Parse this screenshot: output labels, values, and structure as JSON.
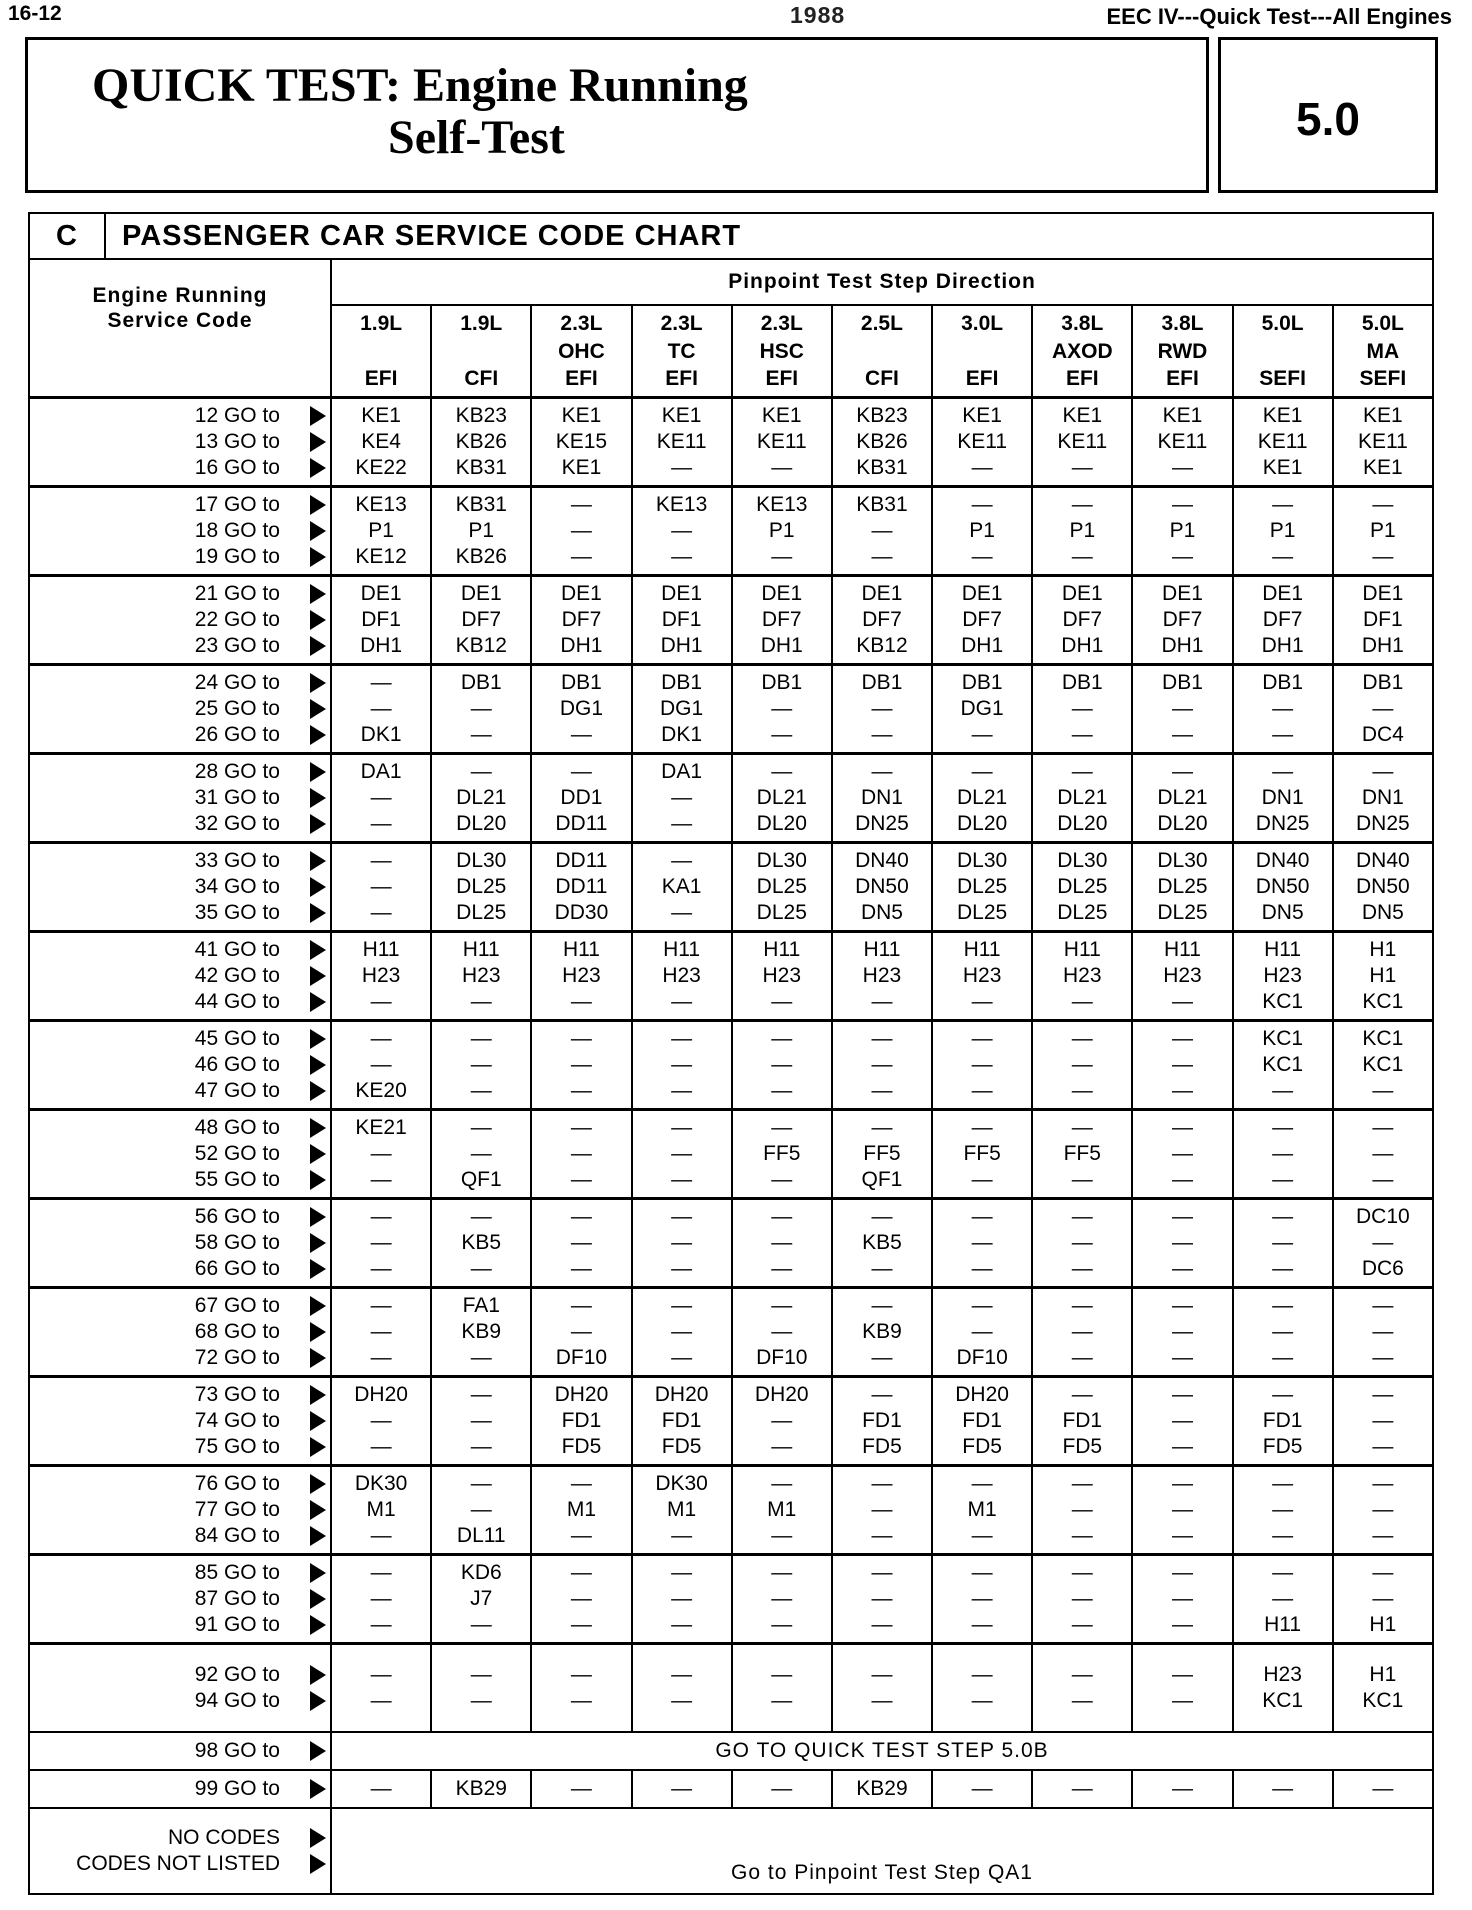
{
  "page_header": {
    "page_number": "16-12",
    "year": "1988",
    "running_head": "EEC IV---Quick Test---All Engines"
  },
  "title": {
    "line1": "QUICK TEST: Engine Running",
    "line2": "Self-Test",
    "section_number": "5.0"
  },
  "chart": {
    "section_letter": "C",
    "section_title": "PASSENGER CAR SERVICE CODE CHART",
    "code_header": [
      "Engine Running",
      "Service Code"
    ],
    "direction_header": "Pinpoint Test Step Direction",
    "columns": [
      [
        "1.9L",
        "",
        "EFI"
      ],
      [
        "1.9L",
        "",
        "CFI"
      ],
      [
        "2.3L",
        "OHC",
        "EFI"
      ],
      [
        "2.3L",
        "TC",
        "EFI"
      ],
      [
        "2.3L",
        "HSC",
        "EFI"
      ],
      [
        "2.5L",
        "",
        "CFI"
      ],
      [
        "3.0L",
        "",
        "EFI"
      ],
      [
        "3.8L",
        "AXOD",
        "EFI"
      ],
      [
        "3.8L",
        "RWD",
        "EFI"
      ],
      [
        "5.0L",
        "",
        "SEFI"
      ],
      [
        "5.0L",
        "MA",
        "SEFI"
      ]
    ],
    "go_to": "GO to",
    "groups": [
      {
        "codes": [
          "12",
          "13",
          "16"
        ],
        "cells": [
          [
            "KE1",
            "KE4",
            "KE22"
          ],
          [
            "KB23",
            "KB26",
            "KB31"
          ],
          [
            "KE1",
            "KE15",
            "KE1"
          ],
          [
            "KE1",
            "KE11",
            "—"
          ],
          [
            "KE1",
            "KE11",
            "—"
          ],
          [
            "KB23",
            "KB26",
            "KB31"
          ],
          [
            "KE1",
            "KE11",
            "—"
          ],
          [
            "KE1",
            "KE11",
            "—"
          ],
          [
            "KE1",
            "KE11",
            "—"
          ],
          [
            "KE1",
            "KE11",
            "KE1"
          ],
          [
            "KE1",
            "KE11",
            "KE1"
          ]
        ]
      },
      {
        "codes": [
          "17",
          "18",
          "19"
        ],
        "cells": [
          [
            "KE13",
            "P1",
            "KE12"
          ],
          [
            "KB31",
            "P1",
            "KB26"
          ],
          [
            "—",
            "—",
            "—"
          ],
          [
            "KE13",
            "—",
            "—"
          ],
          [
            "KE13",
            "P1",
            "—"
          ],
          [
            "KB31",
            "—",
            "—"
          ],
          [
            "—",
            "P1",
            "—"
          ],
          [
            "—",
            "P1",
            "—"
          ],
          [
            "—",
            "P1",
            "—"
          ],
          [
            "—",
            "P1",
            "—"
          ],
          [
            "—",
            "P1",
            "—"
          ]
        ]
      },
      {
        "codes": [
          "21",
          "22",
          "23"
        ],
        "cells": [
          [
            "DE1",
            "DF1",
            "DH1"
          ],
          [
            "DE1",
            "DF7",
            "KB12"
          ],
          [
            "DE1",
            "DF7",
            "DH1"
          ],
          [
            "DE1",
            "DF1",
            "DH1"
          ],
          [
            "DE1",
            "DF7",
            "DH1"
          ],
          [
            "DE1",
            "DF7",
            "KB12"
          ],
          [
            "DE1",
            "DF7",
            "DH1"
          ],
          [
            "DE1",
            "DF7",
            "DH1"
          ],
          [
            "DE1",
            "DF7",
            "DH1"
          ],
          [
            "DE1",
            "DF7",
            "DH1"
          ],
          [
            "DE1",
            "DF1",
            "DH1"
          ]
        ]
      },
      {
        "codes": [
          "24",
          "25",
          "26"
        ],
        "cells": [
          [
            "—",
            "—",
            "DK1"
          ],
          [
            "DB1",
            "—",
            "—"
          ],
          [
            "DB1",
            "DG1",
            "—"
          ],
          [
            "DB1",
            "DG1",
            "DK1"
          ],
          [
            "DB1",
            "—",
            "—"
          ],
          [
            "DB1",
            "—",
            "—"
          ],
          [
            "DB1",
            "DG1",
            "—"
          ],
          [
            "DB1",
            "—",
            "—"
          ],
          [
            "DB1",
            "—",
            "—"
          ],
          [
            "DB1",
            "—",
            "—"
          ],
          [
            "DB1",
            "—",
            "DC4"
          ]
        ]
      },
      {
        "codes": [
          "28",
          "31",
          "32"
        ],
        "cells": [
          [
            "DA1",
            "—",
            "—"
          ],
          [
            "—",
            "DL21",
            "DL20"
          ],
          [
            "—",
            "DD1",
            "DD11"
          ],
          [
            "DA1",
            "—",
            "—"
          ],
          [
            "—",
            "DL21",
            "DL20"
          ],
          [
            "—",
            "DN1",
            "DN25"
          ],
          [
            "—",
            "DL21",
            "DL20"
          ],
          [
            "—",
            "DL21",
            "DL20"
          ],
          [
            "—",
            "DL21",
            "DL20"
          ],
          [
            "—",
            "DN1",
            "DN25"
          ],
          [
            "—",
            "DN1",
            "DN25"
          ]
        ]
      },
      {
        "codes": [
          "33",
          "34",
          "35"
        ],
        "cells": [
          [
            "—",
            "—",
            "—"
          ],
          [
            "DL30",
            "DL25",
            "DL25"
          ],
          [
            "DD11",
            "DD11",
            "DD30"
          ],
          [
            "—",
            "KA1",
            "—"
          ],
          [
            "DL30",
            "DL25",
            "DL25"
          ],
          [
            "DN40",
            "DN50",
            "DN5"
          ],
          [
            "DL30",
            "DL25",
            "DL25"
          ],
          [
            "DL30",
            "DL25",
            "DL25"
          ],
          [
            "DL30",
            "DL25",
            "DL25"
          ],
          [
            "DN40",
            "DN50",
            "DN5"
          ],
          [
            "DN40",
            "DN50",
            "DN5"
          ]
        ]
      },
      {
        "codes": [
          "41",
          "42",
          "44"
        ],
        "cells": [
          [
            "H11",
            "H23",
            "—"
          ],
          [
            "H11",
            "H23",
            "—"
          ],
          [
            "H11",
            "H23",
            "—"
          ],
          [
            "H11",
            "H23",
            "—"
          ],
          [
            "H11",
            "H23",
            "—"
          ],
          [
            "H11",
            "H23",
            "—"
          ],
          [
            "H11",
            "H23",
            "—"
          ],
          [
            "H11",
            "H23",
            "—"
          ],
          [
            "H11",
            "H23",
            "—"
          ],
          [
            "H11",
            "H23",
            "KC1"
          ],
          [
            "H1",
            "H1",
            "KC1"
          ]
        ]
      },
      {
        "codes": [
          "45",
          "46",
          "47"
        ],
        "cells": [
          [
            "—",
            "—",
            "KE20"
          ],
          [
            "—",
            "—",
            "—"
          ],
          [
            "—",
            "—",
            "—"
          ],
          [
            "—",
            "—",
            "—"
          ],
          [
            "—",
            "—",
            "—"
          ],
          [
            "—",
            "—",
            "—"
          ],
          [
            "—",
            "—",
            "—"
          ],
          [
            "—",
            "—",
            "—"
          ],
          [
            "—",
            "—",
            "—"
          ],
          [
            "KC1",
            "KC1",
            "—"
          ],
          [
            "KC1",
            "KC1",
            "—"
          ]
        ]
      },
      {
        "codes": [
          "48",
          "52",
          "55"
        ],
        "cells": [
          [
            "KE21",
            "—",
            "—"
          ],
          [
            "—",
            "—",
            "QF1"
          ],
          [
            "—",
            "—",
            "—"
          ],
          [
            "—",
            "—",
            "—"
          ],
          [
            "—",
            "FF5",
            "—"
          ],
          [
            "—",
            "FF5",
            "QF1"
          ],
          [
            "—",
            "FF5",
            "—"
          ],
          [
            "—",
            "FF5",
            "—"
          ],
          [
            "—",
            "—",
            "—"
          ],
          [
            "—",
            "—",
            "—"
          ],
          [
            "—",
            "—",
            "—"
          ]
        ]
      },
      {
        "codes": [
          "56",
          "58",
          "66"
        ],
        "cells": [
          [
            "—",
            "—",
            "—"
          ],
          [
            "—",
            "KB5",
            "—"
          ],
          [
            "—",
            "—",
            "—"
          ],
          [
            "—",
            "—",
            "—"
          ],
          [
            "—",
            "—",
            "—"
          ],
          [
            "—",
            "KB5",
            "—"
          ],
          [
            "—",
            "—",
            "—"
          ],
          [
            "—",
            "—",
            "—"
          ],
          [
            "—",
            "—",
            "—"
          ],
          [
            "—",
            "—",
            "—"
          ],
          [
            "DC10",
            "—",
            "DC6"
          ]
        ]
      },
      {
        "codes": [
          "67",
          "68",
          "72"
        ],
        "cells": [
          [
            "—",
            "—",
            "—"
          ],
          [
            "FA1",
            "KB9",
            "—"
          ],
          [
            "—",
            "—",
            "DF10"
          ],
          [
            "—",
            "—",
            "—"
          ],
          [
            "—",
            "—",
            "DF10"
          ],
          [
            "—",
            "KB9",
            "—"
          ],
          [
            "—",
            "—",
            "DF10"
          ],
          [
            "—",
            "—",
            "—"
          ],
          [
            "—",
            "—",
            "—"
          ],
          [
            "—",
            "—",
            "—"
          ],
          [
            "—",
            "—",
            "—"
          ]
        ]
      },
      {
        "codes": [
          "73",
          "74",
          "75"
        ],
        "cells": [
          [
            "DH20",
            "—",
            "—"
          ],
          [
            "—",
            "—",
            "—"
          ],
          [
            "DH20",
            "FD1",
            "FD5"
          ],
          [
            "DH20",
            "FD1",
            "FD5"
          ],
          [
            "DH20",
            "—",
            "—"
          ],
          [
            "—",
            "FD1",
            "FD5"
          ],
          [
            "DH20",
            "FD1",
            "FD5"
          ],
          [
            "—",
            "FD1",
            "FD5"
          ],
          [
            "—",
            "—",
            "—"
          ],
          [
            "—",
            "FD1",
            "FD5"
          ],
          [
            "—",
            "—",
            "—"
          ]
        ]
      },
      {
        "codes": [
          "76",
          "77",
          "84"
        ],
        "cells": [
          [
            "DK30",
            "M1",
            "—"
          ],
          [
            "—",
            "—",
            "DL11"
          ],
          [
            "—",
            "M1",
            "—"
          ],
          [
            "DK30",
            "M1",
            "—"
          ],
          [
            "—",
            "M1",
            "—"
          ],
          [
            "—",
            "—",
            "—"
          ],
          [
            "—",
            "M1",
            "—"
          ],
          [
            "—",
            "—",
            "—"
          ],
          [
            "—",
            "—",
            "—"
          ],
          [
            "—",
            "—",
            "—"
          ],
          [
            "—",
            "—",
            "—"
          ]
        ]
      },
      {
        "codes": [
          "85",
          "87",
          "91"
        ],
        "cells": [
          [
            "—",
            "—",
            "—"
          ],
          [
            "KD6",
            "J7",
            "—"
          ],
          [
            "—",
            "—",
            "—"
          ],
          [
            "—",
            "—",
            "—"
          ],
          [
            "—",
            "—",
            "—"
          ],
          [
            "—",
            "—",
            "—"
          ],
          [
            "—",
            "—",
            "—"
          ],
          [
            "—",
            "—",
            "—"
          ],
          [
            "—",
            "—",
            "—"
          ],
          [
            "—",
            "—",
            "H11"
          ],
          [
            "—",
            "—",
            "H1"
          ]
        ]
      },
      {
        "codes": [
          "92",
          "94"
        ],
        "cells": [
          [
            "—",
            "—"
          ],
          [
            "—",
            "—"
          ],
          [
            "—",
            "—"
          ],
          [
            "—",
            "—"
          ],
          [
            "—",
            "—"
          ],
          [
            "—",
            "—"
          ],
          [
            "—",
            "—"
          ],
          [
            "—",
            "—"
          ],
          [
            "—",
            "—"
          ],
          [
            "H23",
            "KC1"
          ],
          [
            "H1",
            "KC1"
          ]
        ]
      }
    ],
    "row_98": {
      "code": "98",
      "text": "GO TO QUICK TEST STEP 5.0B"
    },
    "row_99": {
      "code": "99",
      "cells": [
        "—",
        "KB29",
        "—",
        "—",
        "—",
        "KB29",
        "—",
        "—",
        "—",
        "—",
        "—"
      ]
    },
    "row_last": {
      "codes": [
        "NO CODES",
        "CODES NOT LISTED"
      ],
      "text": "Go to Pinpoint Test Step QA1"
    }
  }
}
